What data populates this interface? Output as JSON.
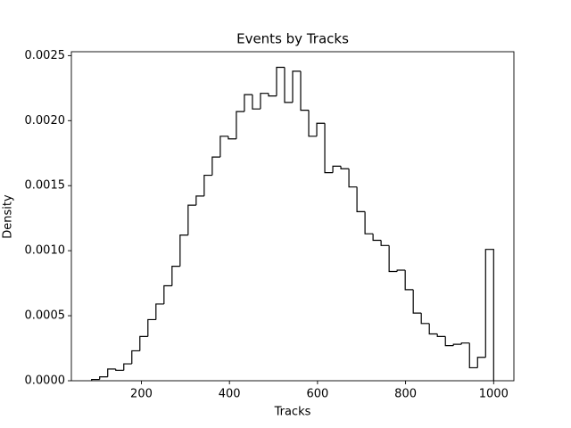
{
  "chart_data": {
    "type": "histogram",
    "title": "Events by Tracks",
    "x_label": "Tracks",
    "y_label": "Density",
    "color": "#000000",
    "bins": [
      87,
      105.26,
      123.52,
      141.78,
      160.04,
      178.3,
      196.56,
      214.82,
      233.08,
      251.34,
      269.6,
      287.86,
      306.12,
      324.38,
      342.64,
      360.9,
      379.16,
      397.42,
      415.68,
      433.94,
      452.2,
      470.46,
      488.72,
      506.98,
      525.24,
      543.5,
      561.76,
      580.02,
      598.28,
      616.54,
      634.8,
      653.06,
      671.32,
      689.58,
      707.84,
      726.1,
      744.36,
      762.62,
      780.88,
      799.14,
      817.4,
      835.66,
      853.92,
      872.18,
      890.44,
      908.7,
      926.96,
      945.22,
      963.48,
      981.74,
      1000
    ],
    "values": [
      1e-05,
      3e-05,
      9e-05,
      8e-05,
      0.00013,
      0.00023,
      0.00034,
      0.00047,
      0.00059,
      0.00073,
      0.00088,
      0.00112,
      0.00135,
      0.00142,
      0.00158,
      0.00172,
      0.00188,
      0.00186,
      0.00207,
      0.0022,
      0.00209,
      0.00221,
      0.00219,
      0.00241,
      0.00214,
      0.00238,
      0.00208,
      0.00188,
      0.00198,
      0.0016,
      0.00165,
      0.00163,
      0.00149,
      0.0013,
      0.00113,
      0.00108,
      0.00104,
      0.00084,
      0.00085,
      0.0007,
      0.00052,
      0.00044,
      0.00036,
      0.00034,
      0.00027,
      0.00028,
      0.00029,
      0.0001,
      0.00018,
      0.00101
    ],
    "xlim": [
      41,
      1046
    ],
    "ylim": [
      0,
      0.00253
    ],
    "xticks": [
      200,
      400,
      600,
      800,
      1000
    ],
    "yticks": [
      {
        "value": 0,
        "label": "0.0000"
      },
      {
        "value": 0.0005,
        "label": "0.0005"
      },
      {
        "value": 0.001,
        "label": "0.0010"
      },
      {
        "value": 0.0015,
        "label": "0.0015"
      },
      {
        "value": 0.002,
        "label": "0.0020"
      },
      {
        "value": 0.0025,
        "label": "0.0025"
      }
    ]
  }
}
